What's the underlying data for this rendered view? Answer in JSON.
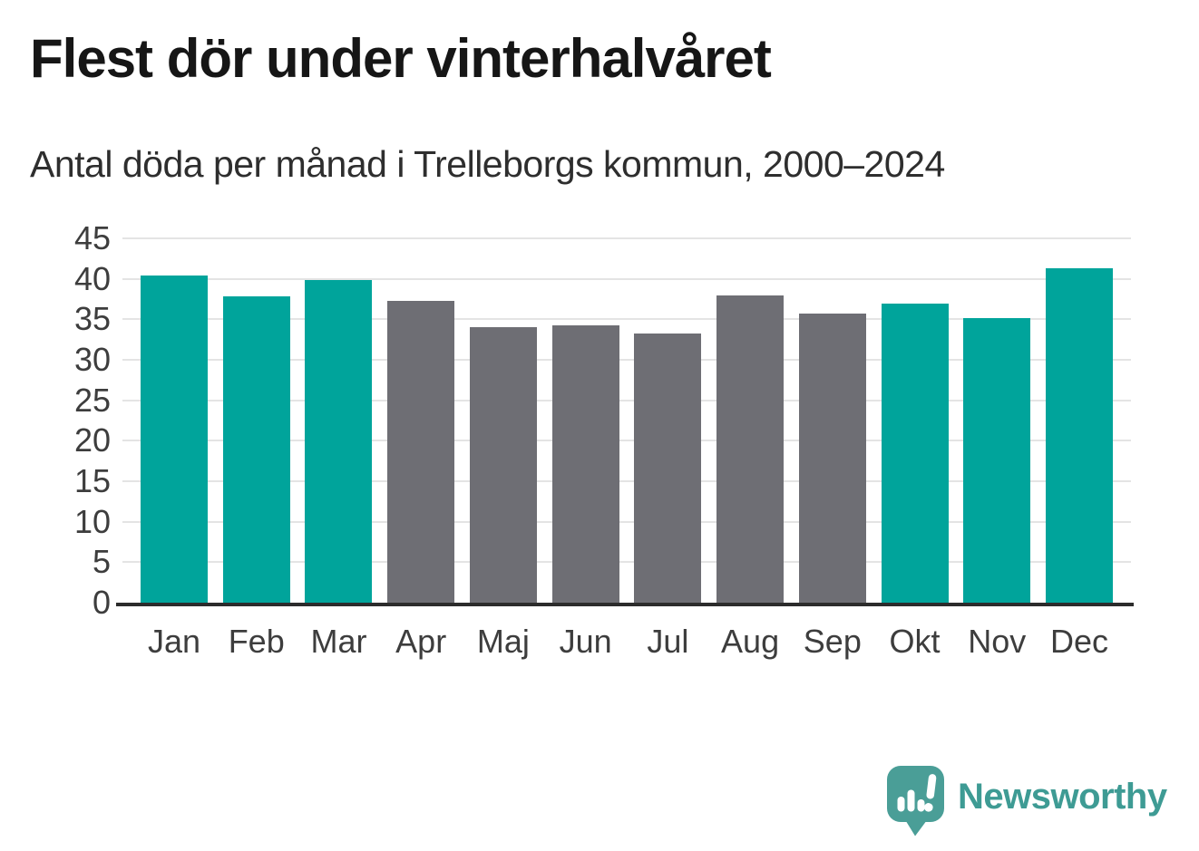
{
  "header": {
    "title": "Flest dör under vinterhalvåret",
    "subtitle": "Antal döda per månad i Trelleborgs kommun, 2000–2024"
  },
  "chart_data": {
    "type": "bar",
    "title": "Flest dör under vinterhalvåret",
    "subtitle": "Antal döda per månad i Trelleborgs kommun, 2000–2024",
    "categories": [
      "Jan",
      "Feb",
      "Mar",
      "Apr",
      "Maj",
      "Jun",
      "Jul",
      "Aug",
      "Sep",
      "Okt",
      "Nov",
      "Dec"
    ],
    "values": [
      40.4,
      37.8,
      39.9,
      37.3,
      34.0,
      34.2,
      33.3,
      37.9,
      35.7,
      36.9,
      35.2,
      41.3
    ],
    "bar_colors": [
      "teal",
      "teal",
      "teal",
      "gray",
      "gray",
      "gray",
      "gray",
      "gray",
      "gray",
      "teal",
      "teal",
      "teal"
    ],
    "colors": {
      "teal": "#00a49b",
      "gray": "#6e6e74",
      "gridline": "#e4e4e4",
      "axis": "#2c2c2c",
      "tick_text": "#3d3d3d"
    },
    "xlabel": "",
    "ylabel": "",
    "ylim": [
      0,
      45
    ],
    "yticks": [
      0,
      5,
      10,
      15,
      20,
      25,
      30,
      35,
      40,
      45
    ],
    "grid": true,
    "legend": "none"
  },
  "branding": {
    "logo_text": "Newsworthy",
    "logo_color": "#3e9b94",
    "logo_icon": "speech-bubble-bar-chart-icon"
  }
}
